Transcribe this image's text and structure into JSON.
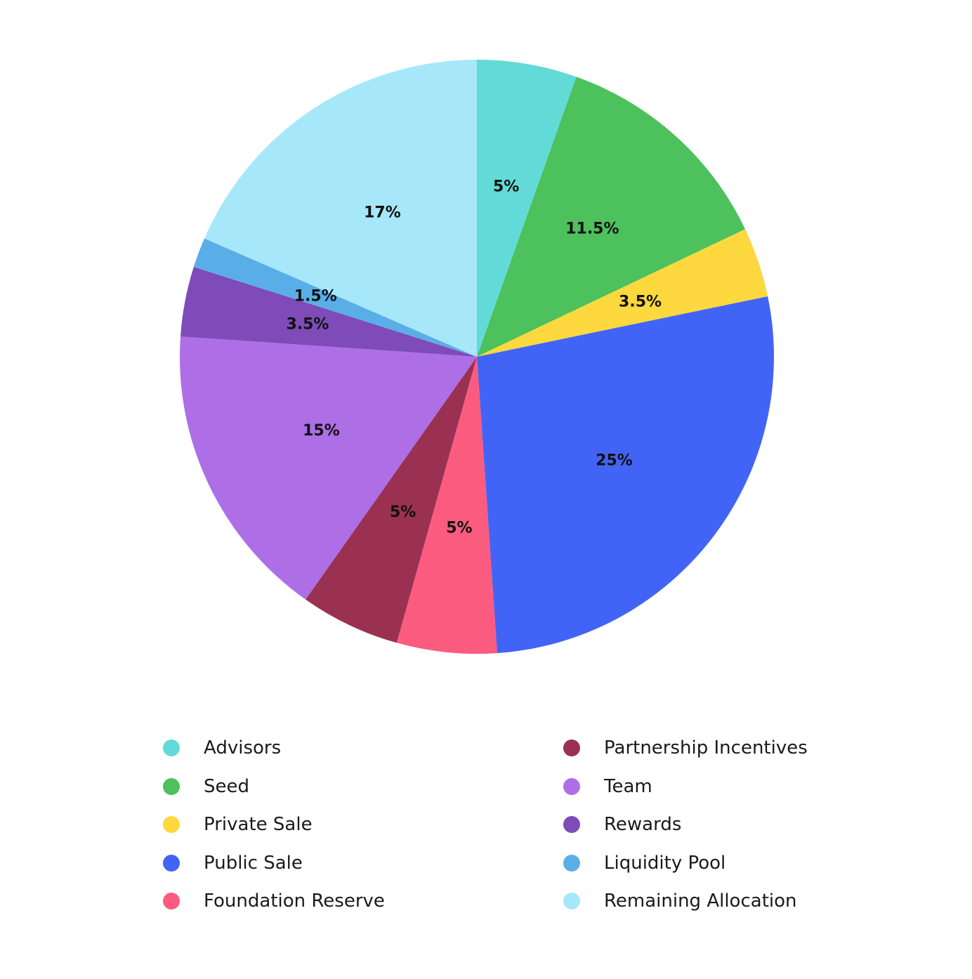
{
  "chart_data": {
    "type": "pie",
    "title": "",
    "start": "top",
    "direction": "clockwise",
    "slices": [
      {
        "label": "Advisors",
        "value": 5,
        "value_label": "5%",
        "color": "#62DBD8"
      },
      {
        "label": "Seed",
        "value": 11.5,
        "value_label": "11.5%",
        "color": "#4CC15C"
      },
      {
        "label": "Private Sale",
        "value": 3.5,
        "value_label": "3.5%",
        "color": "#FDD83E"
      },
      {
        "label": "Public Sale",
        "value": 25,
        "value_label": "25%",
        "color": "#4264F6"
      },
      {
        "label": "Foundation Reserve",
        "value": 5,
        "value_label": "5%",
        "color": "#FC5B80"
      },
      {
        "label": "Partnership Incentives",
        "value": 5,
        "value_label": "5%",
        "color": "#9A3152"
      },
      {
        "label": "Team",
        "value": 15,
        "value_label": "15%",
        "color": "#AD6EE6"
      },
      {
        "label": "Rewards",
        "value": 3.5,
        "value_label": "3.5%",
        "color": "#7E4BB8"
      },
      {
        "label": "Liquidity Pool",
        "value": 1.5,
        "value_label": "1.5%",
        "color": "#5AAEE8"
      },
      {
        "label": "Remaining Allocation",
        "value": 17,
        "value_label": "17%",
        "color": "#A6E8F9"
      }
    ],
    "legend": {
      "placement": "bottom",
      "columns": 2,
      "left_column": [
        "Advisors",
        "Seed",
        "Private Sale",
        "Public Sale",
        "Foundation Reserve"
      ],
      "right_column": [
        "Partnership Incentives",
        "Team",
        "Rewards",
        "Liquidity Pool",
        "Remaining Allocation"
      ]
    }
  }
}
